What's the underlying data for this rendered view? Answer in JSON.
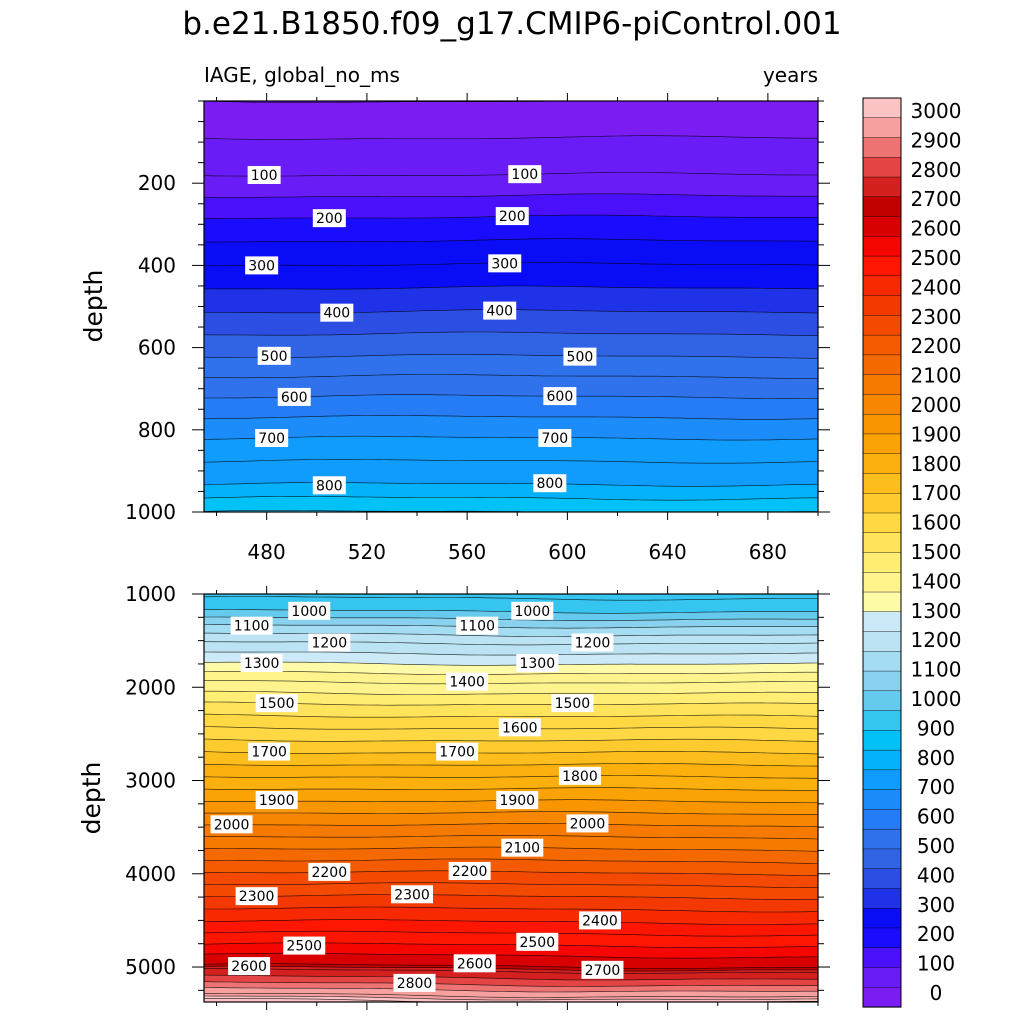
{
  "chart_data": [
    {
      "type": "heatmap",
      "title": "b.e21.B1850.f09_g17.CMIP6-piControl.001",
      "left_string": "IAGE, global_no_ms",
      "right_string": "years",
      "xlabel": "",
      "ylabel": "depth",
      "xlim": [
        455,
        700
      ],
      "ylim": [
        1000,
        0
      ],
      "x_ticks": [
        480,
        520,
        560,
        600,
        640,
        680
      ],
      "y_ticks": [
        200,
        400,
        600,
        800,
        1000
      ],
      "contour_levels": [
        0,
        100,
        200,
        300,
        400,
        500,
        600,
        700,
        800,
        900
      ],
      "contour_labels": [
        {
          "text": "100",
          "x": 479,
          "y": 180
        },
        {
          "text": "100",
          "x": 583,
          "y": 178
        },
        {
          "text": "200",
          "x": 505,
          "y": 285
        },
        {
          "text": "200",
          "x": 578,
          "y": 280
        },
        {
          "text": "300",
          "x": 478,
          "y": 400
        },
        {
          "text": "300",
          "x": 575,
          "y": 395
        },
        {
          "text": "400",
          "x": 508,
          "y": 515
        },
        {
          "text": "400",
          "x": 573,
          "y": 510
        },
        {
          "text": "500",
          "x": 483,
          "y": 620
        },
        {
          "text": "500",
          "x": 605,
          "y": 622
        },
        {
          "text": "600",
          "x": 491,
          "y": 720
        },
        {
          "text": "600",
          "x": 597,
          "y": 718
        },
        {
          "text": "700",
          "x": 482,
          "y": 820
        },
        {
          "text": "700",
          "x": 595,
          "y": 820
        },
        {
          "text": "800",
          "x": 505,
          "y": 935
        },
        {
          "text": "800",
          "x": 593,
          "y": 930
        }
      ]
    },
    {
      "type": "heatmap",
      "xlabel": "",
      "ylabel": "depth",
      "xlim": [
        455,
        700
      ],
      "ylim": [
        5375,
        1000
      ],
      "y_ticks": [
        1000,
        2000,
        3000,
        4000,
        5000
      ],
      "contour_levels": [
        1000,
        1100,
        1200,
        1300,
        1400,
        1500,
        1600,
        1700,
        1800,
        1900,
        2000,
        2100,
        2200,
        2300,
        2400,
        2500,
        2600,
        2700,
        2800,
        2900,
        3000
      ],
      "contour_labels": [
        {
          "text": "1000",
          "x": 497,
          "y": 1180
        },
        {
          "text": "1000",
          "x": 586,
          "y": 1180
        },
        {
          "text": "1100",
          "x": 474,
          "y": 1340
        },
        {
          "text": "1100",
          "x": 564,
          "y": 1340
        },
        {
          "text": "1200",
          "x": 505,
          "y": 1520
        },
        {
          "text": "1200",
          "x": 610,
          "y": 1520
        },
        {
          "text": "1300",
          "x": 478,
          "y": 1740
        },
        {
          "text": "1300",
          "x": 588,
          "y": 1740
        },
        {
          "text": "1400",
          "x": 560,
          "y": 1940
        },
        {
          "text": "1500",
          "x": 484,
          "y": 2170
        },
        {
          "text": "1500",
          "x": 602,
          "y": 2170
        },
        {
          "text": "1600",
          "x": 581,
          "y": 2430
        },
        {
          "text": "1700",
          "x": 481,
          "y": 2690
        },
        {
          "text": "1700",
          "x": 556,
          "y": 2690
        },
        {
          "text": "1800",
          "x": 605,
          "y": 2950
        },
        {
          "text": "1900",
          "x": 484,
          "y": 3210
        },
        {
          "text": "1900",
          "x": 580,
          "y": 3210
        },
        {
          "text": "2000",
          "x": 466,
          "y": 3470
        },
        {
          "text": "2000",
          "x": 608,
          "y": 3460
        },
        {
          "text": "2100",
          "x": 582,
          "y": 3720
        },
        {
          "text": "2200",
          "x": 505,
          "y": 3980
        },
        {
          "text": "2200",
          "x": 561,
          "y": 3970
        },
        {
          "text": "2300",
          "x": 476,
          "y": 4240
        },
        {
          "text": "2300",
          "x": 538,
          "y": 4220
        },
        {
          "text": "2400",
          "x": 613,
          "y": 4500
        },
        {
          "text": "2500",
          "x": 495,
          "y": 4770
        },
        {
          "text": "2500",
          "x": 588,
          "y": 4730
        },
        {
          "text": "2600",
          "x": 473,
          "y": 4990
        },
        {
          "text": "2600",
          "x": 563,
          "y": 4960
        },
        {
          "text": "2700",
          "x": 614,
          "y": 5030
        },
        {
          "text": "2800",
          "x": 539,
          "y": 5170
        }
      ]
    }
  ],
  "colorbar": {
    "labels": [
      "0",
      "100",
      "200",
      "300",
      "400",
      "500",
      "600",
      "700",
      "800",
      "900",
      "1000",
      "1100",
      "1200",
      "1300",
      "1400",
      "1500",
      "1600",
      "1700",
      "1800",
      "1900",
      "2000",
      "2100",
      "2200",
      "2300",
      "2400",
      "2500",
      "2600",
      "2700",
      "2800",
      "2900",
      "3000"
    ],
    "colors": [
      "#7b1cf2",
      "#6a1cf7",
      "#4a10fb",
      "#1a0cff",
      "#0b0cf6",
      "#2032e8",
      "#2d4ee2",
      "#3164e4",
      "#2f72ec",
      "#267cf4",
      "#1c8cfa",
      "#109cfd",
      "#03b2fa",
      "#00c2f6",
      "#36c4f0",
      "#66caee",
      "#88d2ef",
      "#a4dcf2",
      "#bbe3f4",
      "#cbe9f7",
      "#fdfaa8",
      "#fff38e",
      "#ffed74",
      "#ffe35a",
      "#ffd844",
      "#fecb2e",
      "#fdbd1c",
      "#fcb00e",
      "#fba204",
      "#f89500",
      "#f88700",
      "#f67900",
      "#f56a00",
      "#f45a00",
      "#f34900",
      "#f33800",
      "#f82800",
      "#fe1600",
      "#f50600",
      "#d80000",
      "#c30000",
      "#d52020",
      "#e44444",
      "#ee7474",
      "#f6a0a0",
      "#fbc3c3"
    ]
  }
}
